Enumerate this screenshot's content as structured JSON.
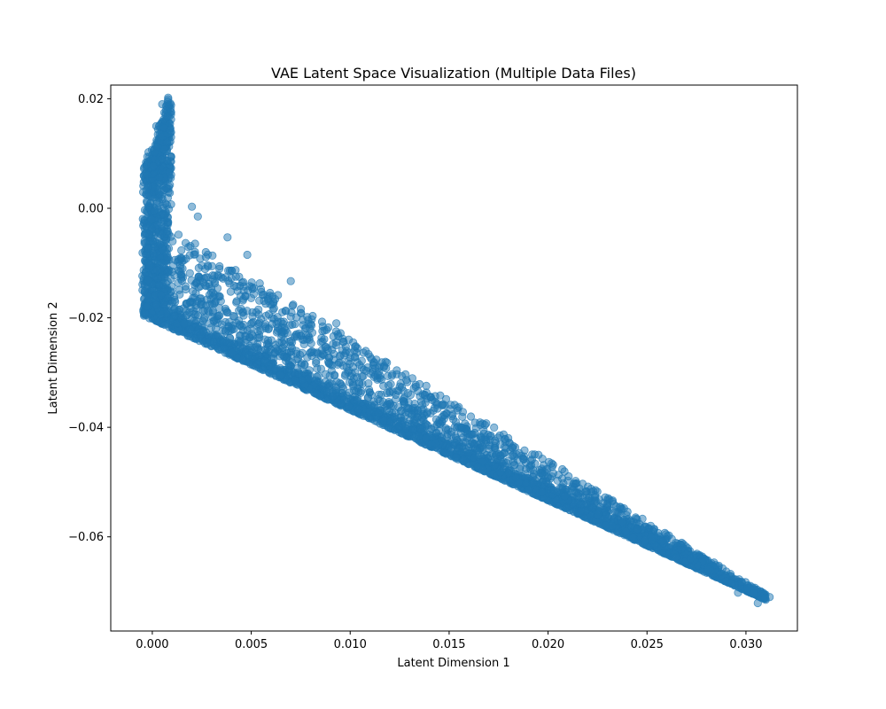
{
  "chart_data": {
    "type": "scatter",
    "title": "VAE Latent Space Visualization (Multiple Data Files)",
    "xlabel": "Latent Dimension 1",
    "ylabel": "Latent Dimension 2",
    "xlim": [
      -0.0021,
      0.0326
    ],
    "ylim": [
      -0.0772,
      0.0225
    ],
    "xticks": [
      {
        "value": 0.0,
        "label": "0.000"
      },
      {
        "value": 0.005,
        "label": "0.005"
      },
      {
        "value": 0.01,
        "label": "0.010"
      },
      {
        "value": 0.015,
        "label": "0.015"
      },
      {
        "value": 0.02,
        "label": "0.020"
      },
      {
        "value": 0.025,
        "label": "0.025"
      },
      {
        "value": 0.03,
        "label": "0.030"
      }
    ],
    "yticks": [
      {
        "value": 0.02,
        "label": "0.02"
      },
      {
        "value": 0.0,
        "label": "0.00"
      },
      {
        "value": -0.02,
        "label": "−0.02"
      },
      {
        "value": -0.04,
        "label": "−0.04"
      },
      {
        "value": -0.06,
        "label": "−0.06"
      }
    ],
    "grid": false,
    "legend": "none",
    "point_color": "#1f77b4",
    "point_alpha": 0.5,
    "regions": {
      "upper_arm": {
        "x": [
          -0.0004,
          0.0009
        ],
        "y_bottom": [
          -0.004,
          0.0
        ],
        "y_top": [
          0.008,
          0.0202
        ]
      },
      "main_band": {
        "x": [
          -0.0005,
          0.031
        ],
        "y_bottom": [
          -0.0195,
          -0.0715
        ],
        "y_top": [
          -0.0005,
          -0.0705
        ]
      }
    },
    "outliers": [
      {
        "x": 0.0312,
        "y": -0.071
      },
      {
        "x": 0.0306,
        "y": -0.0721
      },
      {
        "x": 0.0304,
        "y": -0.0703
      },
      {
        "x": 0.0296,
        "y": -0.0702
      },
      {
        "x": 0.0293,
        "y": -0.0685
      },
      {
        "x": 0.002,
        "y": 0.0003
      },
      {
        "x": 0.0023,
        "y": -0.0015
      },
      {
        "x": 0.0038,
        "y": -0.0053
      },
      {
        "x": 0.0048,
        "y": -0.0085
      },
      {
        "x": 0.007,
        "y": -0.0133
      },
      {
        "x": 0.0093,
        "y": -0.021
      },
      {
        "x": 0.0112,
        "y": -0.0308
      },
      {
        "x": 0.0138,
        "y": -0.0355
      },
      {
        "x": 0.0153,
        "y": -0.0428
      },
      {
        "x": 0.0167,
        "y": -0.0478
      },
      {
        "x": 0.0203,
        "y": -0.0515
      },
      {
        "x": 0.0225,
        "y": -0.056
      },
      {
        "x": 0.0252,
        "y": -0.06
      },
      {
        "x": 0.0272,
        "y": -0.064
      },
      {
        "x": -0.0004,
        "y": 0.0075
      },
      {
        "x": -0.0002,
        "y": 0.004
      },
      {
        "x": 0.0002,
        "y": 0.015
      },
      {
        "x": 0.0005,
        "y": 0.019
      },
      {
        "x": 0.0008,
        "y": 0.0202
      }
    ]
  }
}
